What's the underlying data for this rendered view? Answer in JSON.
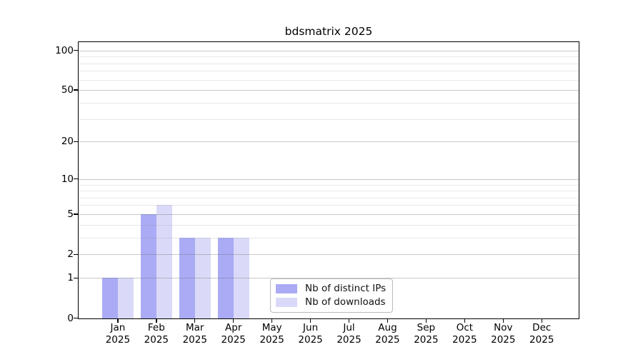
{
  "chart_data": {
    "type": "bar",
    "title": "bdsmatrix 2025",
    "x_axis": {
      "months": [
        "Jan",
        "Feb",
        "Mar",
        "Apr",
        "May",
        "Jun",
        "Jul",
        "Aug",
        "Sep",
        "Oct",
        "Nov",
        "Dec"
      ],
      "year_label": "2025"
    },
    "y_axis": {
      "scale": "log10(1+v)",
      "tick_values": [
        0,
        1,
        2,
        5,
        10,
        20,
        50,
        100
      ],
      "tick_labels": [
        "0",
        "1",
        "2",
        "5",
        "10",
        "20",
        "50",
        "100"
      ],
      "minor_gridline_values": [
        3,
        4,
        6,
        7,
        8,
        9,
        30,
        40,
        60,
        70,
        80,
        90
      ],
      "ylim": [
        0,
        116
      ],
      "grid": "on"
    },
    "series": [
      {
        "name": "Nb of distinct IPs",
        "color": "#aaabf4",
        "values": [
          1,
          5,
          3,
          3,
          0,
          0,
          0,
          0,
          0,
          0,
          0,
          0
        ]
      },
      {
        "name": "Nb of downloads",
        "color": "#dadaf8",
        "values": [
          1,
          6,
          3,
          3,
          0,
          0,
          0,
          0,
          0,
          0,
          0,
          0
        ]
      }
    ],
    "legend": {
      "position": "bottom-center",
      "entries": [
        "Nb of distinct IPs",
        "Nb of downloads"
      ]
    },
    "colors": {
      "background": "#ffffff",
      "spine": "#000000",
      "grid_major": "#cdcdcd",
      "grid_minor": "#e4e4e4"
    }
  }
}
